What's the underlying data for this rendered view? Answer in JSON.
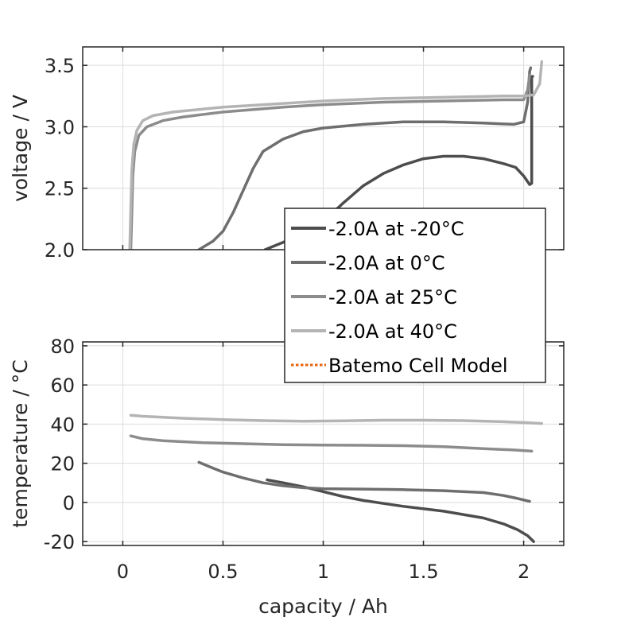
{
  "chart_data": [
    {
      "type": "line",
      "panel": "top",
      "title": "",
      "xlabel": "",
      "ylabel": "voltage / V",
      "xlim": [
        -0.2,
        2.2
      ],
      "ylim": [
        2.0,
        3.65
      ],
      "xticks": [
        0,
        0.5,
        1,
        1.5,
        2
      ],
      "yticks": [
        2.0,
        2.5,
        3.0,
        3.5
      ],
      "ytick_labels": [
        "2.0",
        "2.5",
        "3.0",
        "3.5"
      ],
      "show_xtick_labels": false,
      "grid": true,
      "series": [
        {
          "name": "-2.0A at -20°C",
          "color": "#4d4d4d",
          "x": [
            0.71,
            0.8,
            0.9,
            0.95,
            1.0,
            1.1,
            1.2,
            1.3,
            1.4,
            1.5,
            1.6,
            1.7,
            1.8,
            1.9,
            1.96,
            2.0,
            2.03,
            2.04,
            2.04,
            2.045
          ],
          "y": [
            2.0,
            2.06,
            2.12,
            2.17,
            2.23,
            2.38,
            2.52,
            2.62,
            2.69,
            2.74,
            2.76,
            2.76,
            2.74,
            2.7,
            2.67,
            2.6,
            2.53,
            2.54,
            3.41,
            3.41
          ]
        },
        {
          "name": "-2.0A at 0°C",
          "color": "#6e6e6e",
          "x": [
            0.38,
            0.45,
            0.5,
            0.55,
            0.6,
            0.65,
            0.7,
            0.8,
            0.9,
            1.0,
            1.2,
            1.4,
            1.6,
            1.8,
            1.95,
            2.0,
            2.02,
            2.03,
            2.035
          ],
          "y": [
            2.0,
            2.07,
            2.15,
            2.3,
            2.48,
            2.66,
            2.8,
            2.9,
            2.96,
            2.99,
            3.02,
            3.04,
            3.04,
            3.03,
            3.02,
            3.04,
            3.2,
            3.45,
            3.48
          ]
        },
        {
          "name": "-2.0A at 25°C",
          "color": "#8c8c8c",
          "x": [
            0.04,
            0.045,
            0.05,
            0.06,
            0.08,
            0.12,
            0.2,
            0.3,
            0.5,
            0.8,
            1.0,
            1.3,
            1.6,
            1.9,
            2.0,
            2.02,
            2.03
          ],
          "y": [
            2.0,
            2.3,
            2.6,
            2.8,
            2.93,
            3.0,
            3.05,
            3.08,
            3.12,
            3.16,
            3.18,
            3.2,
            3.21,
            3.22,
            3.22,
            3.3,
            3.42
          ]
        },
        {
          "name": "-2.0A at 40°C",
          "color": "#b4b4b4",
          "x": [
            0.035,
            0.04,
            0.045,
            0.055,
            0.07,
            0.1,
            0.15,
            0.25,
            0.5,
            0.8,
            1.0,
            1.3,
            1.6,
            1.9,
            2.0,
            2.05,
            2.08,
            2.09
          ],
          "y": [
            2.0,
            2.35,
            2.65,
            2.86,
            2.97,
            3.05,
            3.09,
            3.12,
            3.16,
            3.19,
            3.21,
            3.23,
            3.24,
            3.25,
            3.25,
            3.26,
            3.35,
            3.53
          ]
        },
        {
          "name": "Batemo Cell Model",
          "color": "#e8630a",
          "style": "dotted",
          "x": [],
          "y": []
        }
      ]
    },
    {
      "type": "line",
      "panel": "bottom",
      "title": "",
      "xlabel": "capacity / Ah",
      "ylabel": "temperature / °C",
      "xlim": [
        -0.2,
        2.2
      ],
      "ylim": [
        -22,
        82
      ],
      "xticks": [
        0,
        0.5,
        1,
        1.5,
        2
      ],
      "xtick_labels": [
        "0",
        "0.5",
        "1",
        "1.5",
        "2"
      ],
      "yticks": [
        -20,
        0,
        20,
        40,
        60,
        80
      ],
      "ytick_labels": [
        "-20",
        "0",
        "20",
        "40",
        "60",
        "80"
      ],
      "grid": true,
      "series": [
        {
          "name": "-2.0A at -20°C",
          "color": "#4d4d4d",
          "x": [
            0.72,
            0.8,
            0.9,
            1.0,
            1.1,
            1.2,
            1.4,
            1.6,
            1.8,
            1.9,
            1.97,
            2.02,
            2.05
          ],
          "y": [
            11.5,
            10,
            8,
            5.5,
            3,
            1,
            -2,
            -4.5,
            -8,
            -11,
            -14,
            -17,
            -20
          ]
        },
        {
          "name": "-2.0A at 0°C",
          "color": "#6e6e6e",
          "x": [
            0.38,
            0.45,
            0.5,
            0.6,
            0.7,
            0.8,
            0.9,
            1.0,
            1.2,
            1.4,
            1.6,
            1.8,
            1.9,
            1.97,
            2.03
          ],
          "y": [
            20.5,
            17.5,
            15.5,
            12.5,
            10,
            8.5,
            7.5,
            7,
            6.8,
            6.5,
            6,
            5,
            3.5,
            2,
            0.5
          ]
        },
        {
          "name": "-2.0A at 25°C",
          "color": "#8c8c8c",
          "x": [
            0.04,
            0.1,
            0.2,
            0.4,
            0.6,
            0.8,
            1.0,
            1.2,
            1.4,
            1.6,
            1.8,
            1.95,
            2.04
          ],
          "y": [
            34,
            32.5,
            31.5,
            30.5,
            30,
            29.5,
            29.3,
            29.2,
            29,
            28.5,
            27.5,
            26.8,
            26.2
          ]
        },
        {
          "name": "-2.0A at 40°C",
          "color": "#b4b4b4",
          "x": [
            0.04,
            0.1,
            0.3,
            0.5,
            0.7,
            0.9,
            1.1,
            1.3,
            1.5,
            1.7,
            1.9,
            2.0,
            2.09
          ],
          "y": [
            44.5,
            44,
            43,
            42.3,
            41.8,
            41.5,
            41.7,
            42,
            42,
            41.8,
            41.2,
            40.8,
            40.3
          ]
        }
      ]
    }
  ],
  "legend": {
    "placement": "center-right",
    "entries": [
      {
        "label": "-2.0A at -20°C",
        "color": "#4d4d4d",
        "style": "solid"
      },
      {
        "label": "-2.0A at 0°C",
        "color": "#6e6e6e",
        "style": "solid"
      },
      {
        "label": "-2.0A at 25°C",
        "color": "#8c8c8c",
        "style": "solid"
      },
      {
        "label": "-2.0A at 40°C",
        "color": "#b4b4b4",
        "style": "solid"
      },
      {
        "label": "Batemo Cell Model",
        "color": "#e8630a",
        "style": "dotted"
      }
    ]
  }
}
